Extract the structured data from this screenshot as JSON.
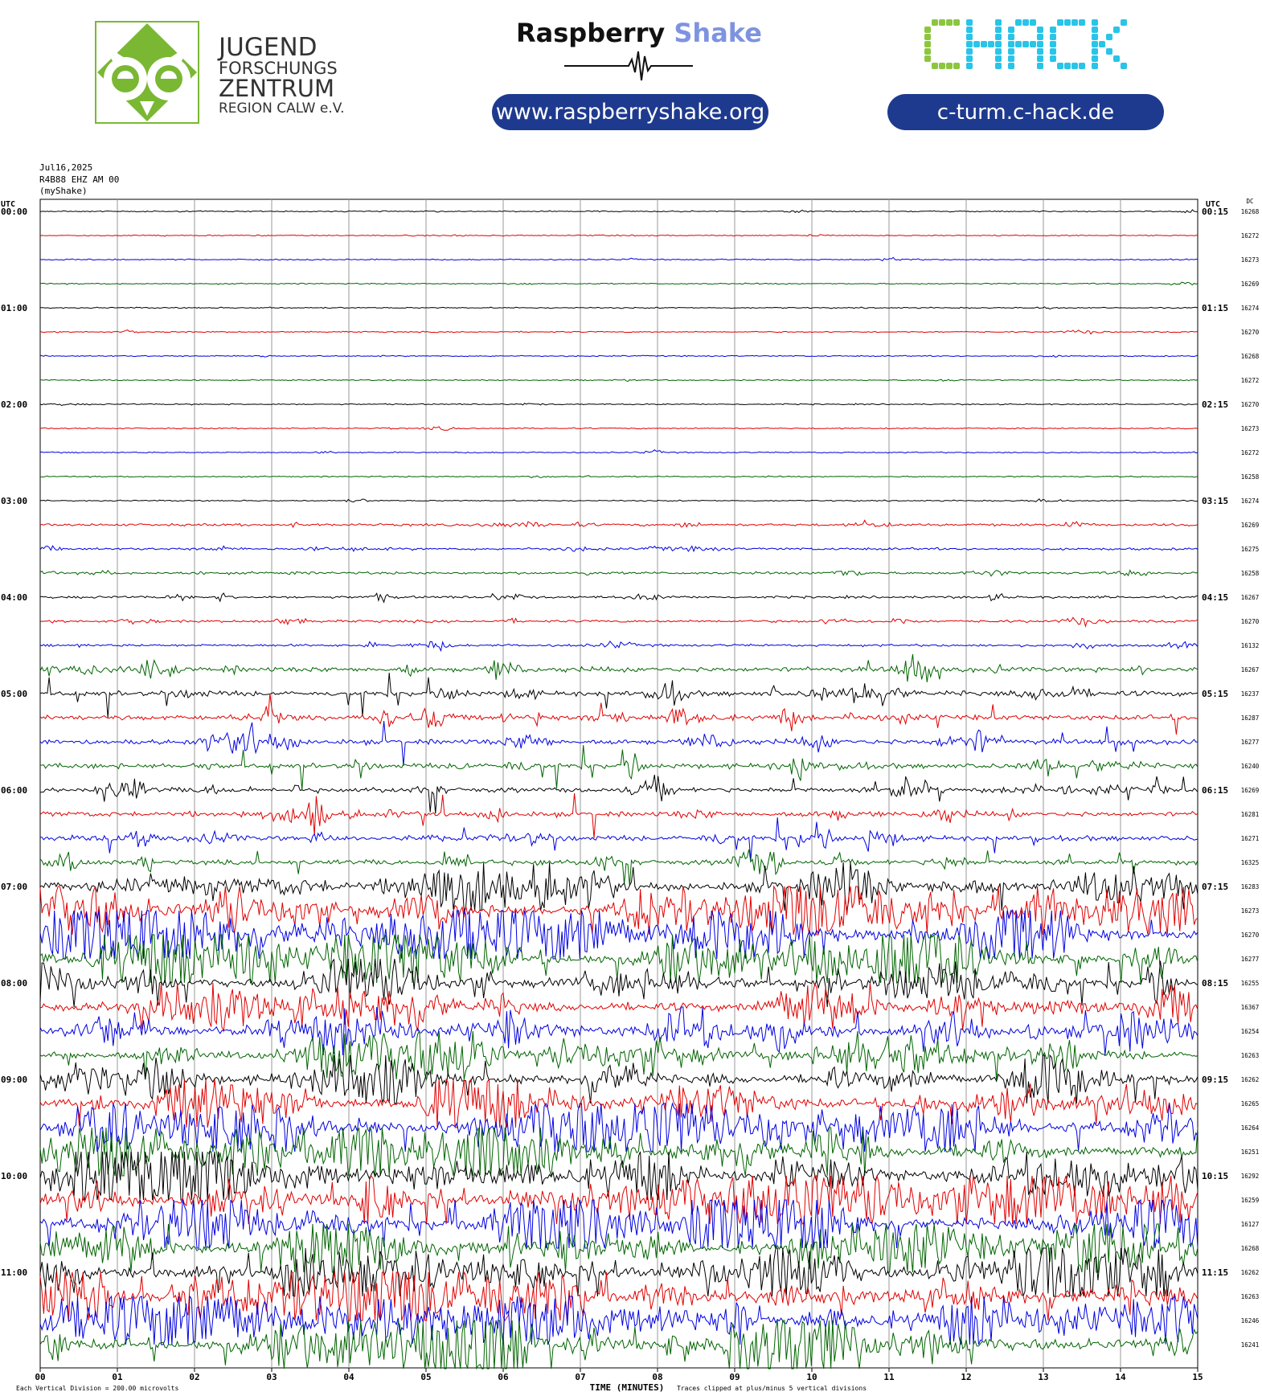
{
  "header": {
    "jfz_lines": [
      "JUGEND",
      "FORSCHUNGS",
      "ZENTRUM",
      "REGION CALW e.V."
    ],
    "rs_title_part1": "Raspberry",
    "rs_title_part2": "Shake",
    "rs_url": "www.raspberryshake.org",
    "chack_logo": "CHACK",
    "chack_url": "c-turm.c-hack.de",
    "colors": {
      "pill": "#1e3a8f",
      "jfz_green": "#7ab833",
      "chack_green": "#8cc63f",
      "chack_cyan": "#29c4e8",
      "rs_blue": "#7e93e0"
    }
  },
  "meta": {
    "date": "Jul16,2025",
    "station": "R4B88 EHZ AM 00",
    "source": "(myShake)"
  },
  "chart_data": {
    "type": "helicorder",
    "left_label": "UTC",
    "right_label": "UTC",
    "dc_label": "DC",
    "row_minutes": 15,
    "trace_colors": [
      "#000000",
      "#e00000",
      "#0000e0",
      "#006400"
    ],
    "left_times": [
      "00:00",
      "01:00",
      "02:00",
      "03:00",
      "04:00",
      "05:00",
      "06:00",
      "07:00",
      "08:00",
      "09:00",
      "10:00",
      "11:00"
    ],
    "right_times": [
      "00:15",
      "01:15",
      "02:15",
      "03:15",
      "04:15",
      "05:15",
      "06:15",
      "07:15",
      "08:15",
      "09:15",
      "10:15",
      "11:15"
    ],
    "dc_values": [
      "16268",
      "16272",
      "16273",
      "16269",
      "16274",
      "16270",
      "16268",
      "16272",
      "16270",
      "16273",
      "16272",
      "16258",
      "16274",
      "16269",
      "16275",
      "16258",
      "16267",
      "16270",
      "16132",
      "16267",
      "16237",
      "16287",
      "16277",
      "16240",
      "16269",
      "16281",
      "16271",
      "16325",
      "16283",
      "16273",
      "16270",
      "16277",
      "16255",
      "16367",
      "16254",
      "16263",
      "16262",
      "16265",
      "16264",
      "16251",
      "16292",
      "16259",
      "16127",
      "16268",
      "16262",
      "16263",
      "16246",
      "16241"
    ],
    "activity_level": [
      1,
      1,
      1,
      1,
      1,
      1,
      1,
      1,
      1,
      1,
      1,
      1,
      1,
      2,
      2,
      2,
      2,
      2,
      2,
      3,
      3,
      3,
      3,
      3,
      3,
      3,
      3,
      3,
      4,
      5,
      5,
      5,
      4,
      4,
      4,
      4,
      4,
      4,
      5,
      5,
      5,
      5,
      5,
      5,
      5,
      5,
      5,
      5
    ],
    "x_ticks": [
      "00",
      "01",
      "02",
      "03",
      "04",
      "05",
      "06",
      "07",
      "08",
      "09",
      "10",
      "11",
      "12",
      "13",
      "14",
      "15"
    ],
    "xlabel": "TIME (MINUTES)",
    "footer_left": "Each Vertical Division =  200.00 microvolts",
    "footer_right": "Traces clipped at plus/minus 5 vertical divisions"
  }
}
